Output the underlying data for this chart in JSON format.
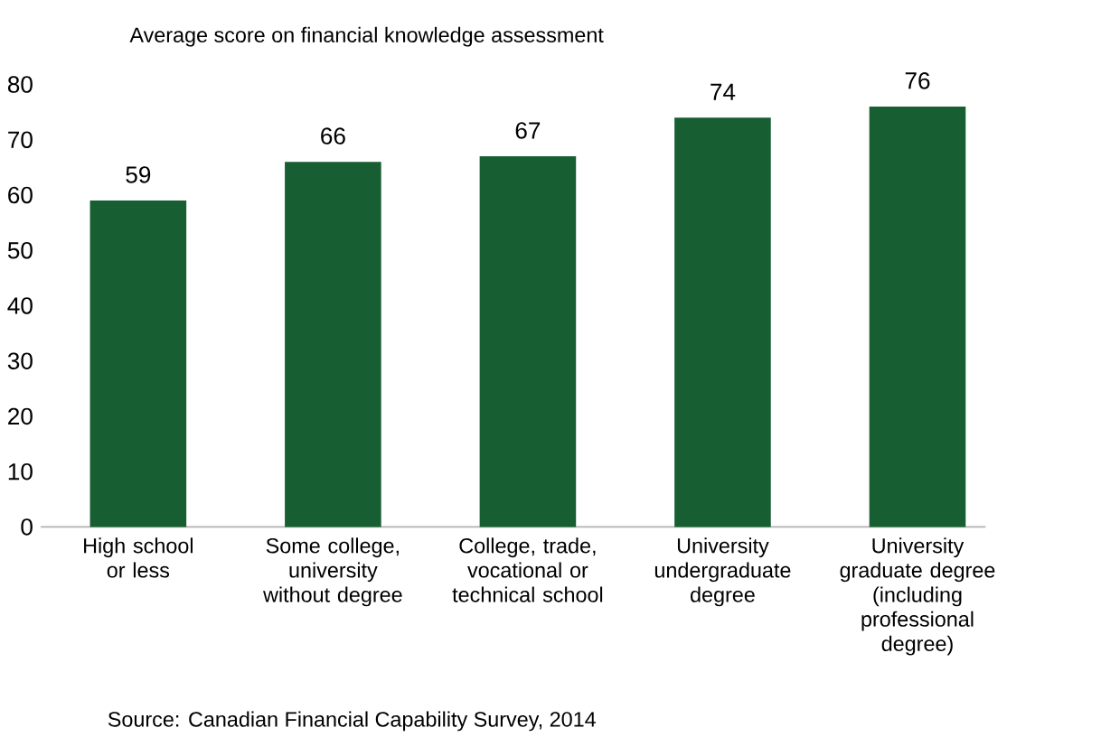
{
  "chart_data": {
    "type": "bar",
    "title": "Average score on financial knowledge assessment",
    "categories": [
      "High school or less",
      "Some college, university without degree",
      "College, trade, vocational or technical school",
      "University undergraduate degree",
      "University graduate degree (including professional degree)"
    ],
    "values": [
      59,
      66,
      67,
      74,
      76
    ],
    "color": "#175e33",
    "ylim": [
      0,
      80
    ],
    "yticks": [
      0,
      10,
      20,
      30,
      40,
      50,
      60,
      70,
      80
    ],
    "data_labels": true,
    "grid": false,
    "annotations": [
      "Source: Canadian Financial Capability Survey, 2014"
    ]
  }
}
